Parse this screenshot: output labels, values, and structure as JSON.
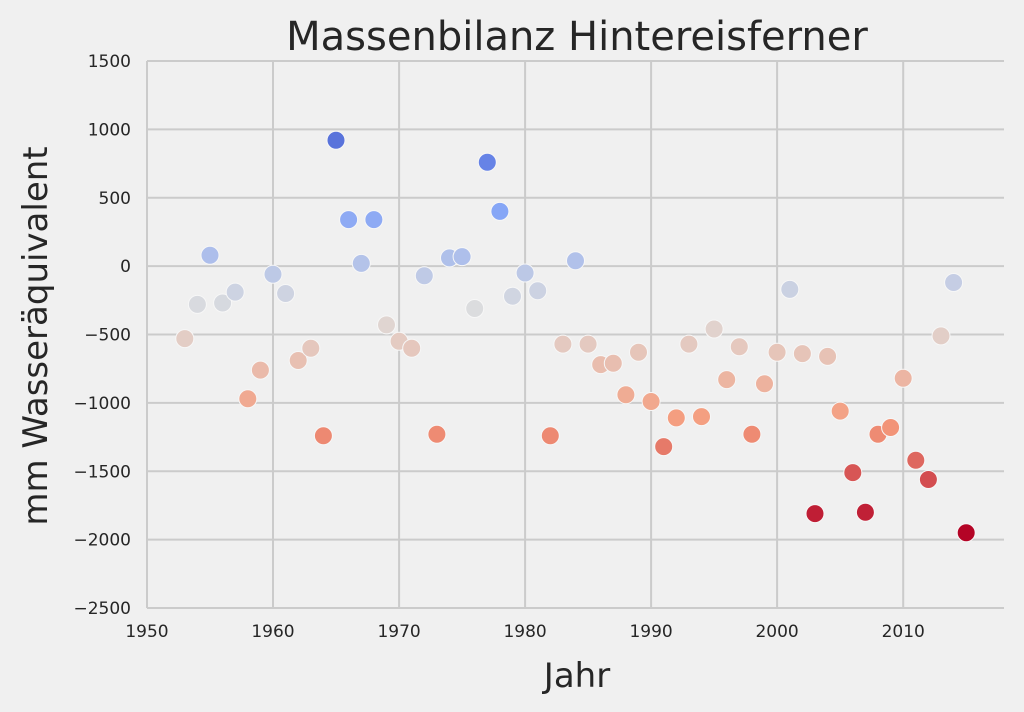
{
  "chart_data": {
    "type": "scatter",
    "title": "Massenbilanz Hintereisferner",
    "xlabel": "Jahr",
    "ylabel": "mm Wasseräquivalent",
    "xlim": [
      1950,
      2018
    ],
    "ylim": [
      -2500,
      1500
    ],
    "xticks": [
      1950,
      1960,
      1970,
      1980,
      1990,
      2000,
      2010
    ],
    "yticks": [
      -2500,
      -2000,
      -1500,
      -1000,
      -500,
      0,
      500,
      1000,
      1500
    ],
    "grid": true,
    "colormap": "coolwarm",
    "color_range": [
      -1950,
      1300
    ],
    "points": [
      {
        "x": 1953,
        "y": -530
      },
      {
        "x": 1954,
        "y": -280
      },
      {
        "x": 1955,
        "y": 80
      },
      {
        "x": 1956,
        "y": -270
      },
      {
        "x": 1957,
        "y": -190
      },
      {
        "x": 1958,
        "y": -970
      },
      {
        "x": 1959,
        "y": -760
      },
      {
        "x": 1960,
        "y": -60
      },
      {
        "x": 1961,
        "y": -200
      },
      {
        "x": 1962,
        "y": -690
      },
      {
        "x": 1963,
        "y": -600
      },
      {
        "x": 1964,
        "y": -1240
      },
      {
        "x": 1965,
        "y": 920
      },
      {
        "x": 1966,
        "y": 340
      },
      {
        "x": 1967,
        "y": 20
      },
      {
        "x": 1968,
        "y": 340
      },
      {
        "x": 1969,
        "y": -430
      },
      {
        "x": 1970,
        "y": -550
      },
      {
        "x": 1971,
        "y": -600
      },
      {
        "x": 1972,
        "y": -70
      },
      {
        "x": 1973,
        "y": -1230
      },
      {
        "x": 1974,
        "y": 60
      },
      {
        "x": 1975,
        "y": 70
      },
      {
        "x": 1976,
        "y": -310
      },
      {
        "x": 1977,
        "y": 760
      },
      {
        "x": 1978,
        "y": 400
      },
      {
        "x": 1979,
        "y": -220
      },
      {
        "x": 1980,
        "y": -50
      },
      {
        "x": 1981,
        "y": -180
      },
      {
        "x": 1982,
        "y": -1240
      },
      {
        "x": 1983,
        "y": -570
      },
      {
        "x": 1984,
        "y": 40
      },
      {
        "x": 1985,
        "y": -570
      },
      {
        "x": 1986,
        "y": -720
      },
      {
        "x": 1987,
        "y": -710
      },
      {
        "x": 1988,
        "y": -940
      },
      {
        "x": 1989,
        "y": -630
      },
      {
        "x": 1990,
        "y": -990
      },
      {
        "x": 1991,
        "y": -1320
      },
      {
        "x": 1992,
        "y": -1110
      },
      {
        "x": 1993,
        "y": -570
      },
      {
        "x": 1994,
        "y": -1100
      },
      {
        "x": 1995,
        "y": -460
      },
      {
        "x": 1996,
        "y": -830
      },
      {
        "x": 1997,
        "y": -590
      },
      {
        "x": 1998,
        "y": -1230
      },
      {
        "x": 1999,
        "y": -860
      },
      {
        "x": 2000,
        "y": -630
      },
      {
        "x": 2001,
        "y": -170
      },
      {
        "x": 2002,
        "y": -640
      },
      {
        "x": 2003,
        "y": -1810
      },
      {
        "x": 2004,
        "y": -660
      },
      {
        "x": 2005,
        "y": -1060
      },
      {
        "x": 2006,
        "y": -1510
      },
      {
        "x": 2007,
        "y": -1800
      },
      {
        "x": 2008,
        "y": -1230
      },
      {
        "x": 2009,
        "y": -1180
      },
      {
        "x": 2010,
        "y": -820
      },
      {
        "x": 2011,
        "y": -1420
      },
      {
        "x": 2012,
        "y": -1560
      },
      {
        "x": 2013,
        "y": -510
      },
      {
        "x": 2014,
        "y": -120
      },
      {
        "x": 2015,
        "y": -1950
      }
    ]
  }
}
